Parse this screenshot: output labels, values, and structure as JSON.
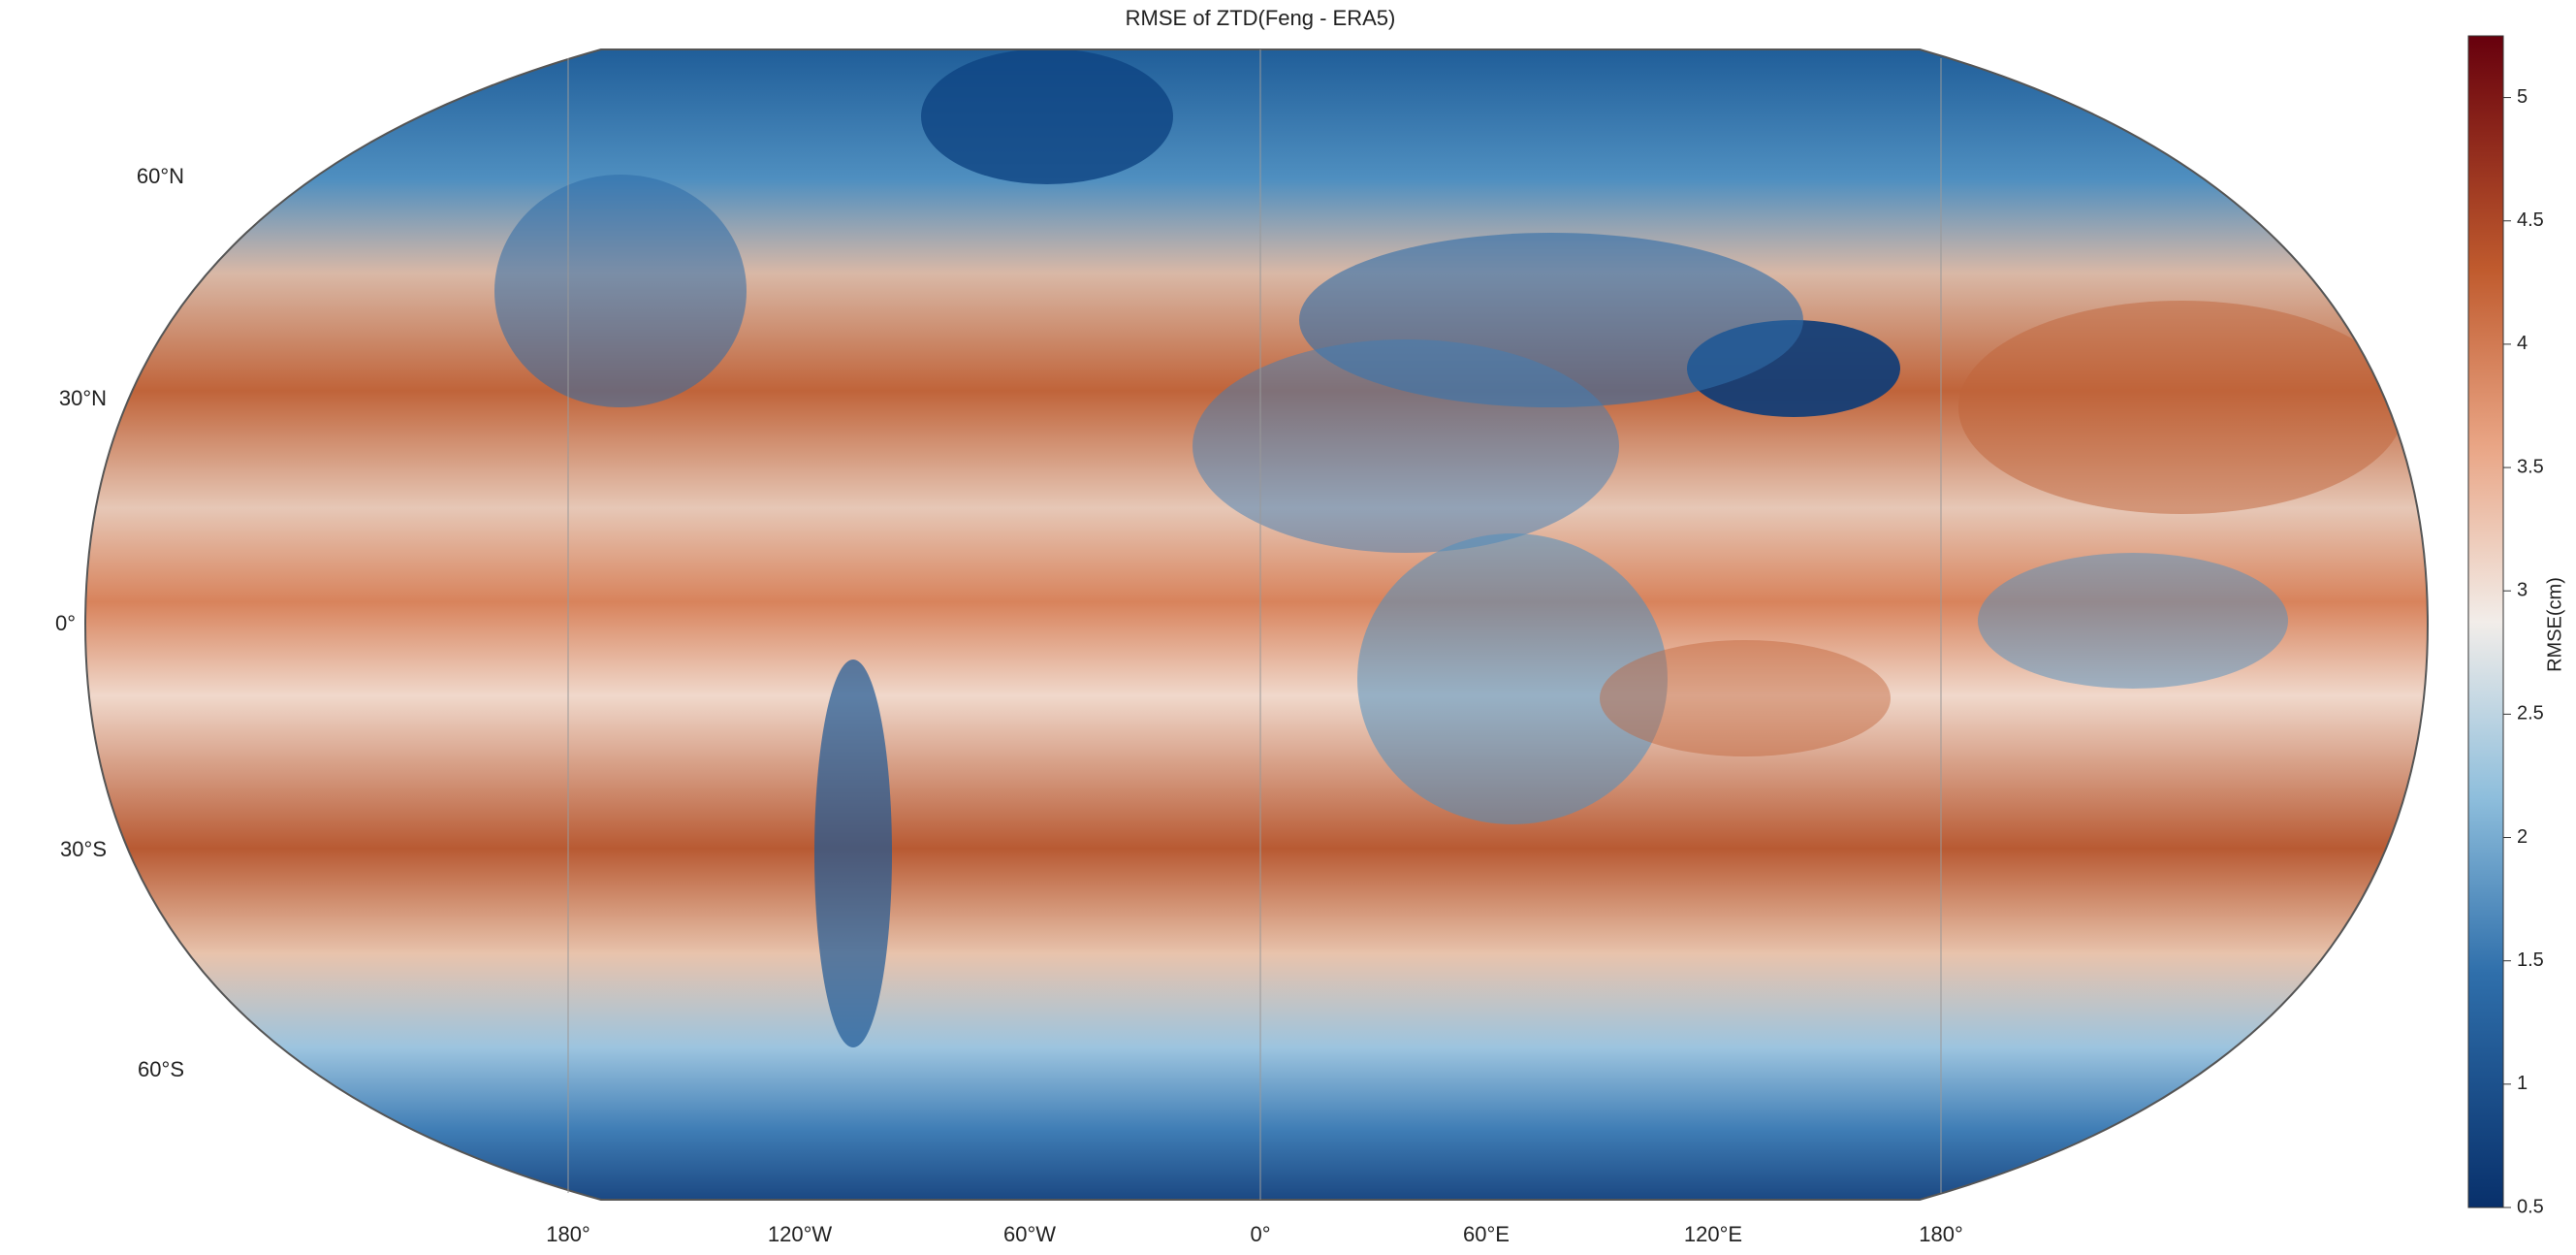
{
  "title": "RMSE of ZTD(Feng - ERA5)",
  "lat_labels": [
    "60°N",
    "30°N",
    "0°",
    "30°S",
    "60°S"
  ],
  "lon_labels": [
    "180°",
    "120°W",
    "60°W",
    "0°",
    "60°E",
    "120°E",
    "180°"
  ],
  "colorbar": {
    "label": "RMSE(cm)",
    "lim": [
      0.5,
      5.25
    ],
    "ticks": [
      0.5,
      1,
      1.5,
      2,
      2.5,
      3,
      3.5,
      4,
      4.5,
      5
    ]
  }
}
